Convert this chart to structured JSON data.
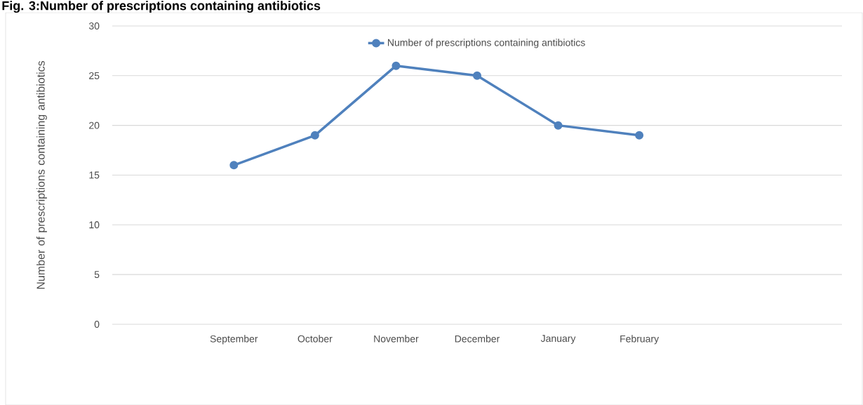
{
  "chart_data": {
    "type": "line",
    "title": "Fig. 3:Number of prescriptions containing antibiotics",
    "ylabel": "Number of prescriptions containing antibiotics",
    "categories": [
      null,
      "September",
      "October",
      "November",
      "December",
      "January",
      "February",
      null,
      null
    ],
    "series": [
      {
        "name": "Number of prescriptions containing antibiotics",
        "color": "#4f81bd",
        "values": [
          null,
          16,
          19,
          26,
          25,
          20,
          19,
          null,
          null
        ]
      }
    ],
    "ylim": [
      0,
      30
    ],
    "yticks": [
      0,
      5,
      10,
      15,
      20,
      25,
      30
    ],
    "grid": "y",
    "legend": "top",
    "marker": "circle",
    "line_style": "solid"
  }
}
